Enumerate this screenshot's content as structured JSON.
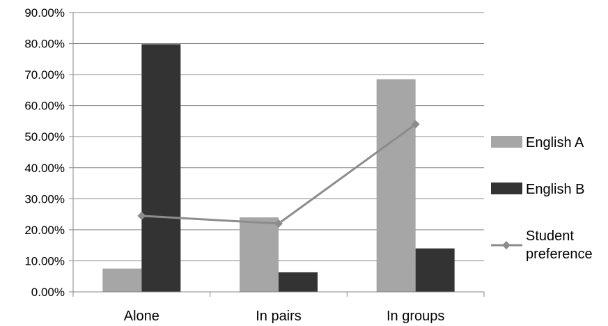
{
  "chart_data": {
    "type": "bar",
    "categories": [
      "Alone",
      "In pairs",
      "In groups"
    ],
    "series": [
      {
        "name": "English A",
        "kind": "bar",
        "color": "#a6a6a6",
        "values": [
          7.5,
          24.0,
          68.5
        ]
      },
      {
        "name": "English B",
        "kind": "bar",
        "color": "#333333",
        "values": [
          79.8,
          6.3,
          14.0
        ]
      },
      {
        "name": "Student preference",
        "name_lines": [
          "Student",
          "preference"
        ],
        "kind": "line",
        "color": "#8c8c8c",
        "marker": "diamond",
        "values": [
          24.5,
          22.0,
          54.0
        ]
      }
    ],
    "ylim": [
      0,
      90
    ],
    "yticks": [
      0,
      10,
      20,
      30,
      40,
      50,
      60,
      70,
      80,
      90
    ],
    "ytick_labels": [
      "0.00%",
      "10.00%",
      "20.00%",
      "30.00%",
      "40.00%",
      "50.00%",
      "60.00%",
      "70.00%",
      "80.00%",
      "90.00%"
    ],
    "grid": true,
    "legend_position": "right"
  }
}
